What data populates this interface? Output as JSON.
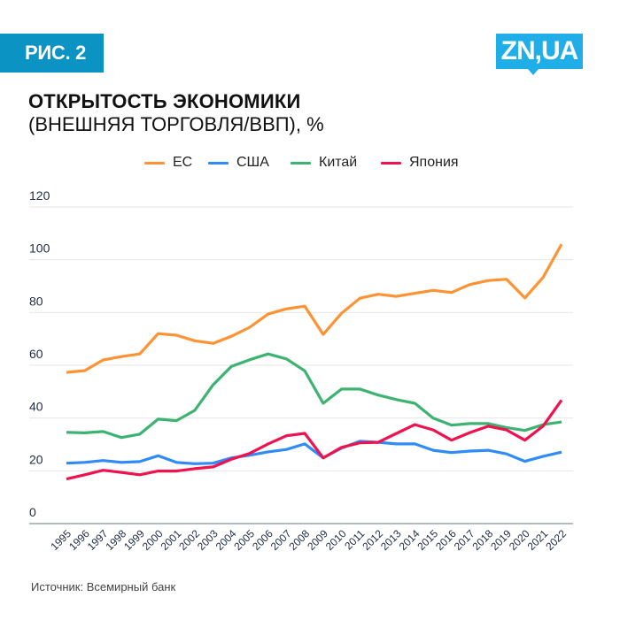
{
  "header": {
    "badge": "РИС. 2",
    "logo": "ZN,UA",
    "title_line1": "ОТКРЫТОСТЬ ЭКОНОМИКИ",
    "title_line2": "(ВНЕШНЯЯ ТОРГОВЛЯ/ВВП), %"
  },
  "footer": {
    "source": "Источник: Всемирный банк"
  },
  "chart_data": {
    "type": "line",
    "title": "ОТКРЫТОСТЬ ЭКОНОМИКИ (ВНЕШНЯЯ ТОРГОВЛЯ/ВВП), %",
    "xlabel": "",
    "ylabel": "",
    "ylim": [
      0,
      120
    ],
    "yticks": [
      0,
      20,
      40,
      60,
      80,
      100,
      120
    ],
    "grid": true,
    "legend_position": "top-center",
    "x": [
      "1995",
      "1996",
      "1997",
      "1998",
      "1999",
      "2000",
      "2001",
      "2002",
      "2003",
      "2004",
      "2005",
      "2006",
      "2007",
      "2008",
      "2009",
      "2010",
      "2011",
      "2012",
      "2013",
      "2014",
      "2015",
      "2016",
      "2017",
      "2018",
      "2019",
      "2020",
      "2021",
      "2022"
    ],
    "series": [
      {
        "name": "ЕС",
        "color": "#FF9233",
        "values": [
          57.3,
          58.0,
          62.0,
          63.3,
          64.3,
          72.0,
          71.4,
          69.3,
          68.3,
          71.0,
          74.4,
          79.4,
          81.4,
          82.4,
          71.7,
          79.7,
          85.4,
          86.9,
          86.1,
          87.3,
          88.4,
          87.6,
          90.6,
          92.1,
          92.6,
          85.5,
          93.4,
          105.9
        ]
      },
      {
        "name": "США",
        "color": "#2F8BF5",
        "values": [
          22.9,
          23.2,
          23.9,
          23.2,
          23.5,
          25.7,
          23.2,
          22.7,
          22.9,
          24.9,
          25.9,
          27.2,
          28.1,
          30.2,
          24.9,
          28.6,
          31.2,
          30.8,
          30.2,
          30.2,
          27.8,
          26.9,
          27.5,
          27.8,
          26.4,
          23.6,
          25.5,
          27.1
        ]
      },
      {
        "name": "Китай",
        "color": "#3CB371",
        "values": [
          34.6,
          34.4,
          34.9,
          32.6,
          33.9,
          39.6,
          39.0,
          42.9,
          52.6,
          59.6,
          62.1,
          64.3,
          62.4,
          57.9,
          45.6,
          51.0,
          51.0,
          48.7,
          47.0,
          45.6,
          40.0,
          37.3,
          37.9,
          37.9,
          36.4,
          35.3,
          37.5,
          38.5
        ]
      },
      {
        "name": "Япония",
        "color": "#F0114E",
        "values": [
          16.9,
          18.5,
          20.2,
          19.4,
          18.5,
          19.9,
          19.9,
          20.8,
          21.5,
          24.4,
          26.6,
          30.2,
          33.3,
          34.2,
          24.9,
          28.9,
          30.6,
          30.8,
          34.2,
          37.5,
          35.5,
          31.6,
          34.5,
          36.9,
          35.5,
          31.6,
          37.0,
          46.8
        ]
      }
    ]
  }
}
